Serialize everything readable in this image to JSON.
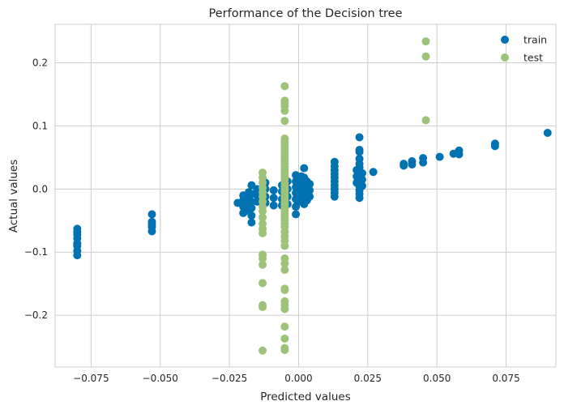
{
  "chart_data": {
    "type": "scatter",
    "title": "Performance of the Decision tree",
    "xlabel": "Predicted values",
    "ylabel": "Actual values",
    "xlim": [
      -0.088,
      0.093
    ],
    "ylim": [
      -0.282,
      0.261
    ],
    "grid": true,
    "legend_position": "top-right",
    "x_ticks": [
      {
        "value": -0.075,
        "label": "−0.075"
      },
      {
        "value": -0.05,
        "label": "−0.050"
      },
      {
        "value": -0.025,
        "label": "−0.025"
      },
      {
        "value": 0,
        "label": "0.000"
      },
      {
        "value": 0.025,
        "label": "0.025"
      },
      {
        "value": 0.05,
        "label": "0.050"
      },
      {
        "value": 0.075,
        "label": "0.075"
      }
    ],
    "y_ticks": [
      {
        "value": -0.2,
        "label": "−0.2"
      },
      {
        "value": -0.1,
        "label": "−0.1"
      },
      {
        "value": 0,
        "label": "0.0"
      },
      {
        "value": 0.1,
        "label": "0.1"
      },
      {
        "value": 0.2,
        "label": "0.2"
      }
    ],
    "series": [
      {
        "name": "train",
        "color": "#0072b2",
        "points": [
          [
            -0.08,
            -0.063
          ],
          [
            -0.08,
            -0.068
          ],
          [
            -0.08,
            -0.072
          ],
          [
            -0.08,
            -0.078
          ],
          [
            -0.08,
            -0.086
          ],
          [
            -0.08,
            -0.09
          ],
          [
            -0.08,
            -0.098
          ],
          [
            -0.08,
            -0.105
          ],
          [
            -0.053,
            -0.04
          ],
          [
            -0.053,
            -0.052
          ],
          [
            -0.053,
            -0.056
          ],
          [
            -0.053,
            -0.06
          ],
          [
            -0.053,
            -0.067
          ],
          [
            -0.022,
            -0.022
          ],
          [
            -0.02,
            -0.01
          ],
          [
            -0.02,
            -0.018
          ],
          [
            -0.02,
            -0.028
          ],
          [
            -0.02,
            -0.038
          ],
          [
            -0.018,
            -0.005
          ],
          [
            -0.018,
            -0.014
          ],
          [
            -0.018,
            -0.024
          ],
          [
            -0.018,
            -0.035
          ],
          [
            -0.017,
            0.006
          ],
          [
            -0.017,
            -0.008
          ],
          [
            -0.017,
            -0.02
          ],
          [
            -0.017,
            -0.03
          ],
          [
            -0.017,
            -0.042
          ],
          [
            -0.017,
            -0.053
          ],
          [
            -0.015,
            0.0
          ],
          [
            -0.015,
            -0.01
          ],
          [
            -0.015,
            -0.02
          ],
          [
            -0.012,
            0.01
          ],
          [
            -0.012,
            0.0
          ],
          [
            -0.012,
            -0.012
          ],
          [
            -0.012,
            -0.022
          ],
          [
            -0.009,
            -0.002
          ],
          [
            -0.009,
            -0.014
          ],
          [
            -0.009,
            -0.026
          ],
          [
            -0.006,
            0.006
          ],
          [
            -0.006,
            -0.004
          ],
          [
            -0.006,
            -0.016
          ],
          [
            -0.006,
            -0.026
          ],
          [
            -0.004,
            0.012
          ],
          [
            -0.004,
            0.0
          ],
          [
            -0.004,
            -0.012
          ],
          [
            -0.004,
            -0.024
          ],
          [
            -0.001,
            0.022
          ],
          [
            -0.001,
            0.012
          ],
          [
            -0.001,
            0.003
          ],
          [
            -0.001,
            -0.006
          ],
          [
            -0.001,
            -0.016
          ],
          [
            -0.001,
            -0.028
          ],
          [
            -0.001,
            -0.04
          ],
          [
            0.0,
            0.015
          ],
          [
            0.0,
            0.005
          ],
          [
            0.0,
            -0.003
          ],
          [
            0.0,
            -0.012
          ],
          [
            0.0,
            -0.02
          ],
          [
            0.001,
            0.02
          ],
          [
            0.001,
            0.01
          ],
          [
            0.001,
            0.0
          ],
          [
            0.001,
            -0.01
          ],
          [
            0.001,
            -0.02
          ],
          [
            0.002,
            0.033
          ],
          [
            0.002,
            0.018
          ],
          [
            0.002,
            0.006
          ],
          [
            0.002,
            -0.004
          ],
          [
            0.002,
            -0.014
          ],
          [
            0.002,
            -0.024
          ],
          [
            0.003,
            0.012
          ],
          [
            0.003,
            0.002
          ],
          [
            0.003,
            -0.008
          ],
          [
            0.003,
            -0.018
          ],
          [
            0.004,
            0.008
          ],
          [
            0.004,
            -0.002
          ],
          [
            0.004,
            -0.012
          ],
          [
            0.013,
            0.043
          ],
          [
            0.013,
            0.036
          ],
          [
            0.013,
            0.03
          ],
          [
            0.013,
            0.024
          ],
          [
            0.013,
            0.018
          ],
          [
            0.013,
            0.012
          ],
          [
            0.013,
            0.006
          ],
          [
            0.013,
            0.0
          ],
          [
            0.013,
            -0.006
          ],
          [
            0.013,
            -0.012
          ],
          [
            0.022,
            0.082
          ],
          [
            0.022,
            0.062
          ],
          [
            0.022,
            0.059
          ],
          [
            0.022,
            0.048
          ],
          [
            0.022,
            0.04
          ],
          [
            0.022,
            0.034
          ],
          [
            0.022,
            0.028
          ],
          [
            0.022,
            0.022
          ],
          [
            0.022,
            0.016
          ],
          [
            0.022,
            0.01
          ],
          [
            0.022,
            0.004
          ],
          [
            0.022,
            -0.002
          ],
          [
            0.022,
            -0.008
          ],
          [
            0.022,
            -0.014
          ],
          [
            0.021,
            0.03
          ],
          [
            0.021,
            0.02
          ],
          [
            0.021,
            0.01
          ],
          [
            0.023,
            0.025
          ],
          [
            0.023,
            0.015
          ],
          [
            0.023,
            0.005
          ],
          [
            0.027,
            0.027
          ],
          [
            0.038,
            0.04
          ],
          [
            0.038,
            0.037
          ],
          [
            0.041,
            0.044
          ],
          [
            0.041,
            0.039
          ],
          [
            0.045,
            0.049
          ],
          [
            0.045,
            0.042
          ],
          [
            0.051,
            0.051
          ],
          [
            0.056,
            0.056
          ],
          [
            0.058,
            0.061
          ],
          [
            0.058,
            0.055
          ],
          [
            0.071,
            0.072
          ],
          [
            0.071,
            0.068
          ],
          [
            0.09,
            0.089
          ]
        ]
      },
      {
        "name": "test",
        "color": "#9dc27a",
        "points": [
          [
            -0.013,
            0.026
          ],
          [
            -0.013,
            0.018
          ],
          [
            -0.013,
            0.01
          ],
          [
            -0.013,
            0.002
          ],
          [
            -0.013,
            -0.005
          ],
          [
            -0.013,
            -0.012
          ],
          [
            -0.013,
            -0.02
          ],
          [
            -0.013,
            -0.028
          ],
          [
            -0.013,
            -0.035
          ],
          [
            -0.013,
            -0.045
          ],
          [
            -0.013,
            -0.055
          ],
          [
            -0.013,
            -0.063
          ],
          [
            -0.013,
            -0.07
          ],
          [
            -0.013,
            -0.104
          ],
          [
            -0.013,
            -0.11
          ],
          [
            -0.013,
            -0.12
          ],
          [
            -0.013,
            -0.149
          ],
          [
            -0.013,
            -0.184
          ],
          [
            -0.013,
            -0.187
          ],
          [
            -0.013,
            -0.256
          ],
          [
            -0.005,
            0.163
          ],
          [
            -0.005,
            0.14
          ],
          [
            -0.005,
            0.136
          ],
          [
            -0.005,
            0.131
          ],
          [
            -0.005,
            0.124
          ],
          [
            -0.005,
            0.108
          ],
          [
            -0.005,
            0.08
          ],
          [
            -0.005,
            0.075
          ],
          [
            -0.005,
            0.07
          ],
          [
            -0.005,
            0.065
          ],
          [
            -0.005,
            0.06
          ],
          [
            -0.005,
            0.055
          ],
          [
            -0.005,
            0.05
          ],
          [
            -0.005,
            0.045
          ],
          [
            -0.005,
            0.04
          ],
          [
            -0.005,
            0.035
          ],
          [
            -0.005,
            0.03
          ],
          [
            -0.005,
            0.025
          ],
          [
            -0.005,
            0.02
          ],
          [
            -0.005,
            0.015
          ],
          [
            -0.005,
            0.01
          ],
          [
            -0.005,
            0.005
          ],
          [
            -0.005,
            0.0
          ],
          [
            -0.005,
            -0.005
          ],
          [
            -0.005,
            -0.01
          ],
          [
            -0.005,
            -0.015
          ],
          [
            -0.005,
            -0.02
          ],
          [
            -0.005,
            -0.025
          ],
          [
            -0.005,
            -0.03
          ],
          [
            -0.005,
            -0.035
          ],
          [
            -0.005,
            -0.04
          ],
          [
            -0.005,
            -0.045
          ],
          [
            -0.005,
            -0.05
          ],
          [
            -0.005,
            -0.055
          ],
          [
            -0.005,
            -0.06
          ],
          [
            -0.005,
            -0.068
          ],
          [
            -0.005,
            -0.075
          ],
          [
            -0.005,
            -0.082
          ],
          [
            -0.005,
            -0.09
          ],
          [
            -0.005,
            -0.11
          ],
          [
            -0.005,
            -0.118
          ],
          [
            -0.005,
            -0.128
          ],
          [
            -0.005,
            -0.158
          ],
          [
            -0.005,
            -0.16
          ],
          [
            -0.005,
            -0.178
          ],
          [
            -0.005,
            -0.184
          ],
          [
            -0.005,
            -0.19
          ],
          [
            -0.005,
            -0.218
          ],
          [
            -0.005,
            -0.237
          ],
          [
            -0.005,
            -0.252
          ],
          [
            -0.005,
            -0.255
          ],
          [
            0.046,
            0.234
          ],
          [
            0.046,
            0.21
          ],
          [
            0.046,
            0.109
          ]
        ]
      }
    ]
  }
}
